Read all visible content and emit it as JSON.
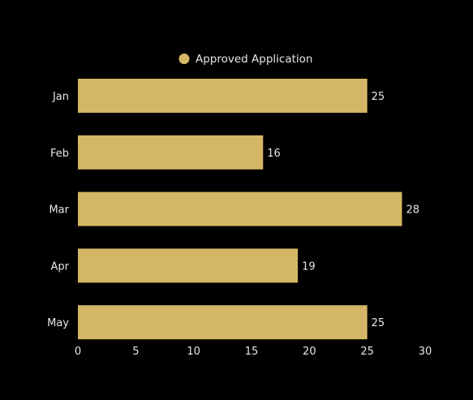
{
  "chart_data": {
    "type": "bar",
    "orientation": "horizontal",
    "categories": [
      "Jan",
      "Feb",
      "Mar",
      "Apr",
      "May"
    ],
    "series": [
      {
        "name": "Approved Application",
        "values": [
          25,
          16,
          28,
          19,
          25
        ]
      }
    ],
    "xlim": [
      0,
      30
    ],
    "x_ticks": [
      "0",
      "5",
      "10",
      "15",
      "20",
      "25",
      "30"
    ],
    "data_labels": [
      "25",
      "16",
      "28",
      "19",
      "25"
    ],
    "legend_position": "top-center",
    "grid": false,
    "colors": {
      "bar": "#d4b766",
      "background": "#000000",
      "text": "#e6e6e6"
    }
  }
}
